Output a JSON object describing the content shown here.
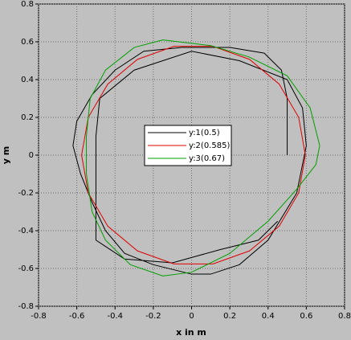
{
  "chart_data": {
    "type": "line",
    "xlabel": "x in m",
    "ylabel": "y m",
    "xlim": [
      -0.8,
      0.8
    ],
    "ylim": [
      -0.8,
      0.8
    ],
    "xticks": [
      -0.8,
      -0.6,
      -0.4,
      -0.2,
      0,
      0.2,
      0.4,
      0.6,
      0.8
    ],
    "yticks": [
      -0.8,
      -0.6,
      -0.4,
      -0.2,
      0,
      0.2,
      0.4,
      0.6,
      0.8
    ],
    "grid": true,
    "legend": "center",
    "series": [
      {
        "name": "y:1(0.5)",
        "color": "#000000",
        "x": [
          0.5,
          0.5,
          0.47,
          0.38,
          0.2,
          -0.05,
          -0.25,
          -0.4,
          -0.52,
          -0.6,
          -0.62,
          -0.58,
          -0.52,
          -0.45,
          -0.35,
          -0.2,
          0,
          0.1,
          0.25,
          0.4,
          0.55,
          0.6,
          0.58,
          0.5,
          0.25,
          0,
          -0.3,
          -0.48,
          -0.5,
          -0.5,
          -0.5,
          -0.35,
          -0.1,
          0.15,
          0.35,
          0.45
        ],
        "y": [
          0,
          0.3,
          0.45,
          0.54,
          0.57,
          0.57,
          0.55,
          0.45,
          0.32,
          0.18,
          0.05,
          -0.1,
          -0.25,
          -0.4,
          -0.52,
          -0.58,
          -0.63,
          -0.63,
          -0.58,
          -0.45,
          -0.2,
          0.05,
          0.25,
          0.4,
          0.5,
          0.55,
          0.45,
          0.3,
          0.1,
          -0.2,
          -0.45,
          -0.55,
          -0.57,
          -0.5,
          -0.45,
          -0.35
        ]
      },
      {
        "name": "y:2(0.585)",
        "color": "#e00000",
        "x": [
          0.595,
          0.56,
          0.458,
          0.303,
          0.112,
          -0.092,
          -0.283,
          -0.438,
          -0.54,
          -0.575,
          -0.54,
          -0.438,
          -0.283,
          -0.092,
          0.112,
          0.303,
          0.458,
          0.56,
          0.595
        ],
        "y": [
          0,
          0.2,
          0.376,
          0.507,
          0.576,
          0.576,
          0.507,
          0.376,
          0.2,
          0,
          -0.2,
          -0.376,
          -0.507,
          -0.576,
          -0.576,
          -0.507,
          -0.376,
          -0.2,
          0
        ]
      },
      {
        "name": "y:3(0.67)",
        "color": "#00a000",
        "x": [
          0.67,
          0.62,
          0.5,
          0.3,
          0.1,
          -0.15,
          -0.3,
          -0.45,
          -0.53,
          -0.55,
          -0.55,
          -0.52,
          -0.45,
          -0.32,
          -0.15,
          0,
          0.2,
          0.4,
          0.55,
          0.65,
          0.67
        ],
        "y": [
          0.05,
          0.25,
          0.42,
          0.52,
          0.58,
          0.61,
          0.57,
          0.45,
          0.3,
          0.1,
          -0.1,
          -0.3,
          -0.45,
          -0.58,
          -0.64,
          -0.62,
          -0.52,
          -0.35,
          -0.18,
          -0.05,
          0.05
        ]
      }
    ]
  }
}
